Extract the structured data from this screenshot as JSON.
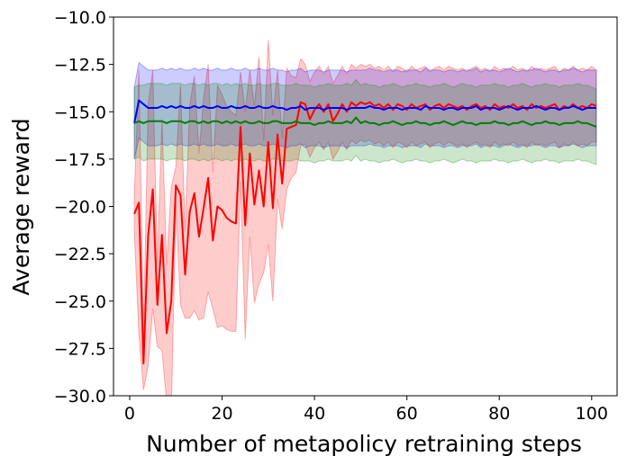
{
  "chart_data": {
    "type": "line",
    "title": "",
    "xlabel": "Number of metapolicy retraining steps",
    "ylabel": "Average reward",
    "xlim": [
      -3.5,
      105.5
    ],
    "ylim": [
      -30.0,
      -10.0
    ],
    "xticks": [
      0,
      20,
      40,
      60,
      80,
      100
    ],
    "xtick_labels": [
      "0",
      "20",
      "40",
      "60",
      "80",
      "100"
    ],
    "yticks": [
      -30.0,
      -27.5,
      -25.0,
      -22.5,
      -20.0,
      -17.5,
      -15.0,
      -12.5,
      -10.0
    ],
    "ytick_labels": [
      "−30.0",
      "−27.5",
      "−25.0",
      "−22.5",
      "−20.0",
      "−17.5",
      "−15.0",
      "−12.5",
      "−10.0"
    ],
    "grid": false,
    "legend": "none",
    "series": [
      {
        "color": "#ff0000",
        "band_color": "#ff0000",
        "band_opacity": 0.2,
        "x": [
          1,
          2,
          3,
          4,
          5,
          6,
          7,
          8,
          9,
          10,
          11,
          12,
          13,
          14,
          15,
          16,
          17,
          18,
          19,
          20,
          21,
          22,
          23,
          24,
          25,
          26,
          27,
          28,
          29,
          30,
          31,
          32,
          33,
          34,
          35,
          36,
          37,
          38,
          39,
          40,
          41,
          42,
          43,
          44,
          45,
          46,
          47,
          48,
          49,
          50,
          51,
          52,
          53,
          54,
          55,
          56,
          57,
          58,
          59,
          60,
          61,
          62,
          63,
          64,
          65,
          66,
          67,
          68,
          69,
          70,
          71,
          72,
          73,
          74,
          75,
          76,
          77,
          78,
          79,
          80,
          81,
          82,
          83,
          84,
          85,
          86,
          87,
          88,
          89,
          90,
          91,
          92,
          93,
          94,
          95,
          96,
          97,
          98,
          99,
          100,
          101
        ],
        "y": [
          -20.4,
          -19.8,
          -28.3,
          -21.5,
          -19.1,
          -25.2,
          -21.5,
          -26.7,
          -25.0,
          -18.9,
          -19.4,
          -23.6,
          -20.3,
          -19.3,
          -21.6,
          -20.1,
          -18.5,
          -21.8,
          -20.0,
          -20.2,
          -20.6,
          -20.8,
          -20.9,
          -15.8,
          -21.0,
          -17.2,
          -19.9,
          -18.1,
          -20.0,
          -16.6,
          -20.1,
          -16.2,
          -18.8,
          -15.9,
          -15.8,
          -15.7,
          -14.5,
          -14.6,
          -15.4,
          -14.9,
          -14.6,
          -15.0,
          -14.6,
          -15.5,
          -15.1,
          -14.6,
          -15.0,
          -14.5,
          -14.7,
          -14.5,
          -14.6,
          -14.5,
          -14.7,
          -14.6,
          -14.8,
          -14.6,
          -14.9,
          -14.6,
          -14.7,
          -14.9,
          -14.6,
          -14.8,
          -14.7,
          -14.6,
          -14.9,
          -14.7,
          -14.6,
          -14.8,
          -14.6,
          -14.7,
          -14.8,
          -14.7,
          -14.9,
          -14.7,
          -14.6,
          -14.8,
          -14.7,
          -14.9,
          -14.6,
          -14.8,
          -14.7,
          -14.8,
          -14.6,
          -14.8,
          -14.7,
          -14.9,
          -14.6,
          -14.8,
          -14.7,
          -14.8,
          -14.7,
          -14.6,
          -14.9,
          -14.7,
          -14.8,
          -14.6,
          -14.8,
          -14.7,
          -14.8,
          -14.6,
          -14.7
        ],
        "spread": [
          0.9,
          7.0,
          1.4,
          6.9,
          6.3,
          2.2,
          6.1,
          3.6,
          6.0,
          1.0,
          5.8,
          2.3,
          5.6,
          6.2,
          4.4,
          5.8,
          6.0,
          3.6,
          6.4,
          6.1,
          5.9,
          5.8,
          5.7,
          2.9,
          6.0,
          4.4,
          5.2,
          6.0,
          3.5,
          5.4,
          4.9,
          3.4,
          2.4,
          3.2,
          2.7,
          2.5,
          2.3,
          2.1,
          2.0,
          2.0,
          2.0,
          2.0,
          2.0,
          2.0,
          2.0,
          2.0,
          2.0,
          2.0,
          2.0,
          2.0,
          2.0,
          2.0,
          2.0,
          2.0,
          2.0,
          2.0,
          2.0,
          2.0,
          2.0,
          2.0,
          2.0,
          2.0,
          2.0,
          2.0,
          2.0,
          2.0,
          2.0,
          2.0,
          2.0,
          2.0,
          2.0,
          2.0,
          2.0,
          2.0,
          2.0,
          2.0,
          2.0,
          2.0,
          2.0,
          2.0,
          2.0,
          2.0,
          2.0,
          2.0,
          2.0,
          2.0,
          2.0,
          2.0,
          2.0,
          2.0,
          2.0,
          2.0,
          2.0,
          2.0,
          2.0,
          2.0,
          2.0,
          2.0,
          2.0,
          2.0,
          1.9
        ]
      },
      {
        "color": "#0000ff",
        "band_color": "#0000ff",
        "band_opacity": 0.2,
        "x": [
          1,
          2,
          3,
          4,
          5,
          6,
          7,
          8,
          9,
          10,
          11,
          12,
          13,
          14,
          15,
          16,
          17,
          18,
          19,
          20,
          21,
          22,
          23,
          24,
          25,
          26,
          27,
          28,
          29,
          30,
          31,
          32,
          33,
          34,
          35,
          36,
          37,
          38,
          39,
          40,
          41,
          42,
          43,
          44,
          45,
          46,
          47,
          48,
          49,
          50,
          51,
          52,
          53,
          54,
          55,
          56,
          57,
          58,
          59,
          60,
          61,
          62,
          63,
          64,
          65,
          66,
          67,
          68,
          69,
          70,
          71,
          72,
          73,
          74,
          75,
          76,
          77,
          78,
          79,
          80,
          81,
          82,
          83,
          84,
          85,
          86,
          87,
          88,
          89,
          90,
          91,
          92,
          93,
          94,
          95,
          96,
          97,
          98,
          99,
          100,
          101
        ],
        "y": [
          -15.6,
          -14.4,
          -14.6,
          -14.8,
          -14.8,
          -14.8,
          -14.7,
          -14.8,
          -14.7,
          -14.8,
          -14.7,
          -14.8,
          -14.8,
          -14.7,
          -14.8,
          -14.7,
          -14.8,
          -14.8,
          -14.7,
          -14.8,
          -14.8,
          -14.7,
          -14.8,
          -14.8,
          -14.7,
          -14.8,
          -14.8,
          -14.7,
          -14.8,
          -14.8,
          -14.7,
          -14.8,
          -14.8,
          -14.9,
          -14.8,
          -14.8,
          -14.7,
          -14.9,
          -14.8,
          -14.8,
          -14.8,
          -14.9,
          -14.8,
          -14.8,
          -14.8,
          -14.8,
          -14.9,
          -14.8,
          -14.8,
          -14.8,
          -14.8,
          -14.7,
          -14.8,
          -14.8,
          -14.9,
          -14.8,
          -14.8,
          -14.8,
          -14.9,
          -14.8,
          -14.8,
          -14.8,
          -14.9,
          -14.7,
          -14.8,
          -14.8,
          -14.8,
          -14.9,
          -14.8,
          -14.8,
          -14.9,
          -14.8,
          -14.8,
          -14.8,
          -14.7,
          -14.9,
          -14.8,
          -14.8,
          -14.8,
          -14.9,
          -14.8,
          -14.7,
          -14.8,
          -14.9,
          -14.8,
          -14.8,
          -14.8,
          -14.7,
          -14.8,
          -14.9,
          -14.8,
          -14.8,
          -14.9,
          -14.8,
          -14.8,
          -14.7,
          -14.8,
          -14.9,
          -14.8,
          -14.8,
          -14.8
        ],
        "spread": [
          1.9,
          2.0,
          2.0,
          2.0,
          2.0,
          2.0,
          2.0,
          2.0,
          2.0,
          2.0,
          2.0,
          2.0,
          2.0,
          2.0,
          2.0,
          2.0,
          2.0,
          2.0,
          2.0,
          2.0,
          2.0,
          2.0,
          2.0,
          2.0,
          2.0,
          2.0,
          2.0,
          2.0,
          2.0,
          2.0,
          2.0,
          2.0,
          2.0,
          2.0,
          2.0,
          2.0,
          2.0,
          2.0,
          2.0,
          2.0,
          2.0,
          2.0,
          2.0,
          2.0,
          2.0,
          2.0,
          2.0,
          2.0,
          2.0,
          2.0,
          2.0,
          2.0,
          2.0,
          2.0,
          2.0,
          2.0,
          2.0,
          2.0,
          2.0,
          2.0,
          2.0,
          2.0,
          2.0,
          2.0,
          2.0,
          2.0,
          2.0,
          2.0,
          2.0,
          2.0,
          2.0,
          2.0,
          2.0,
          2.0,
          2.0,
          2.0,
          2.0,
          2.0,
          2.0,
          2.0,
          2.0,
          2.0,
          2.0,
          2.0,
          2.0,
          2.0,
          2.0,
          2.0,
          2.0,
          2.0,
          2.0,
          2.0,
          2.0,
          2.0,
          2.0,
          2.0,
          2.0,
          2.0,
          2.0,
          2.0,
          2.0
        ]
      },
      {
        "color": "#008000",
        "band_color": "#008000",
        "band_opacity": 0.2,
        "x": [
          1,
          2,
          3,
          4,
          5,
          6,
          7,
          8,
          9,
          10,
          11,
          12,
          13,
          14,
          15,
          16,
          17,
          18,
          19,
          20,
          21,
          22,
          23,
          24,
          25,
          26,
          27,
          28,
          29,
          30,
          31,
          32,
          33,
          34,
          35,
          36,
          37,
          38,
          39,
          40,
          41,
          42,
          43,
          44,
          45,
          46,
          47,
          48,
          49,
          50,
          51,
          52,
          53,
          54,
          55,
          56,
          57,
          58,
          59,
          60,
          61,
          62,
          63,
          64,
          65,
          66,
          67,
          68,
          69,
          70,
          71,
          72,
          73,
          74,
          75,
          76,
          77,
          78,
          79,
          80,
          81,
          82,
          83,
          84,
          85,
          86,
          87,
          88,
          89,
          90,
          91,
          92,
          93,
          94,
          95,
          96,
          97,
          98,
          99,
          100,
          101
        ],
        "y": [
          -15.6,
          -15.5,
          -15.6,
          -15.5,
          -15.5,
          -15.5,
          -15.5,
          -15.6,
          -15.5,
          -15.5,
          -15.5,
          -15.6,
          -15.5,
          -15.5,
          -15.6,
          -15.5,
          -15.6,
          -15.5,
          -15.5,
          -15.6,
          -15.5,
          -15.6,
          -15.5,
          -15.6,
          -15.5,
          -15.6,
          -15.6,
          -15.5,
          -15.6,
          -15.6,
          -15.5,
          -15.5,
          -15.6,
          -15.6,
          -15.6,
          -15.5,
          -15.6,
          -15.6,
          -15.6,
          -15.7,
          -15.6,
          -15.6,
          -15.5,
          -15.6,
          -15.6,
          -15.6,
          -15.5,
          -15.6,
          -15.3,
          -15.6,
          -15.5,
          -15.6,
          -15.6,
          -15.7,
          -15.6,
          -15.6,
          -15.5,
          -15.6,
          -15.7,
          -15.6,
          -15.6,
          -15.5,
          -15.6,
          -15.6,
          -15.7,
          -15.6,
          -15.6,
          -15.5,
          -15.6,
          -15.7,
          -15.6,
          -15.5,
          -15.6,
          -15.6,
          -15.7,
          -15.6,
          -15.6,
          -15.6,
          -15.5,
          -15.6,
          -15.6,
          -15.7,
          -15.6,
          -15.6,
          -15.5,
          -15.6,
          -15.7,
          -15.6,
          -15.6,
          -15.5,
          -15.6,
          -15.6,
          -15.7,
          -15.6,
          -15.6,
          -15.6,
          -15.5,
          -15.6,
          -15.6,
          -15.7,
          -15.8
        ],
        "spread": [
          1.9,
          1.9,
          2.0,
          2.0,
          2.0,
          2.0,
          2.0,
          2.0,
          2.0,
          2.0,
          2.0,
          2.0,
          2.0,
          2.0,
          2.0,
          2.0,
          2.0,
          2.0,
          2.0,
          2.0,
          2.0,
          2.0,
          2.0,
          2.0,
          2.0,
          2.0,
          2.0,
          2.0,
          2.0,
          2.0,
          2.0,
          2.0,
          2.0,
          2.0,
          2.0,
          2.0,
          2.0,
          2.0,
          2.0,
          2.0,
          2.0,
          2.0,
          2.0,
          2.0,
          2.0,
          2.0,
          2.0,
          2.0,
          2.0,
          2.0,
          2.0,
          2.0,
          2.0,
          2.0,
          2.0,
          2.0,
          2.0,
          2.0,
          2.0,
          2.0,
          2.0,
          2.0,
          2.0,
          2.0,
          2.0,
          2.0,
          2.0,
          2.0,
          2.0,
          2.0,
          2.0,
          2.0,
          2.0,
          2.0,
          2.0,
          2.0,
          2.0,
          2.0,
          2.0,
          2.0,
          2.0,
          2.0,
          2.0,
          2.0,
          2.0,
          2.0,
          2.0,
          2.0,
          2.0,
          2.0,
          2.0,
          2.0,
          2.0,
          2.0,
          2.0,
          2.0,
          2.0,
          2.0,
          2.0,
          2.0,
          2.0
        ]
      }
    ]
  }
}
